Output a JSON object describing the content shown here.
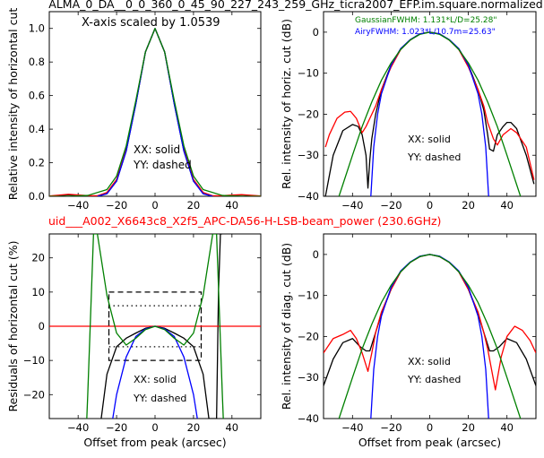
{
  "figure": {
    "title": "ALMA_0_DA__0_0_360_0_45_90_227_243_259_GHz_ticra2007_EFP.im.square.normalized",
    "subtitle": "uid___A002_X6643c8_X2f5_APC-DA56-H-LSB-beam_power (230.6GHz)",
    "subtitle_color": "#ff0000"
  },
  "chart_data": [
    {
      "id": "top-left",
      "type": "line",
      "xlabel": "",
      "ylabel": "Relative intensity of horizontal cut",
      "xlim": [
        -55,
        55
      ],
      "ylim": [
        0,
        1.1
      ],
      "xticks": [
        -40,
        -20,
        0,
        20,
        40
      ],
      "xtick_labels": [
        "−40",
        "−20",
        "0",
        "20",
        "40"
      ],
      "yticks": [
        0.0,
        0.2,
        0.4,
        0.6,
        0.8,
        1.0
      ],
      "ytick_labels": [
        "0.0",
        "0.2",
        "0.4",
        "0.6",
        "0.8",
        "1.0"
      ],
      "annotations": [
        "X-axis scaled by 1.0539",
        "XX: solid",
        "YY: dashed"
      ],
      "series_colors": [
        "#000000",
        "#ff0000",
        "#0000ff",
        "#008000"
      ],
      "series": [
        {
          "x": [
            -55,
            -45,
            -35,
            -30,
            -25,
            -20,
            -15,
            -10,
            -5,
            0,
            5,
            10,
            15,
            20,
            25,
            30,
            35,
            45,
            55
          ],
          "values": [
            0.0,
            0.008,
            0.0,
            0.001,
            0.02,
            0.09,
            0.27,
            0.55,
            0.86,
            1.0,
            0.86,
            0.55,
            0.27,
            0.09,
            0.02,
            0.001,
            0.0,
            0.008,
            0.0
          ]
        },
        {
          "x": [
            -55,
            -45,
            -35,
            -30,
            -25,
            -20,
            -15,
            -10,
            -5,
            0,
            5,
            10,
            15,
            20,
            25,
            30,
            35,
            45,
            55
          ],
          "values": [
            0.002,
            0.012,
            0.004,
            0.003,
            0.023,
            0.1,
            0.28,
            0.56,
            0.86,
            1.0,
            0.86,
            0.56,
            0.28,
            0.1,
            0.023,
            0.003,
            0.004,
            0.01,
            0.002
          ]
        },
        {
          "x": [
            -30,
            -25,
            -20,
            -15,
            -10,
            -5,
            0,
            5,
            10,
            15,
            20,
            25,
            30
          ],
          "values": [
            0.0,
            0.015,
            0.09,
            0.27,
            0.55,
            0.86,
            1.0,
            0.86,
            0.55,
            0.27,
            0.09,
            0.015,
            0.0
          ]
        },
        {
          "x": [
            -55,
            -45,
            -35,
            -25,
            -20,
            -15,
            -10,
            -5,
            0,
            5,
            10,
            15,
            20,
            25,
            35,
            45,
            55
          ],
          "values": [
            0.0,
            0.0,
            0.005,
            0.04,
            0.12,
            0.3,
            0.57,
            0.86,
            1.0,
            0.86,
            0.57,
            0.3,
            0.12,
            0.04,
            0.005,
            0.0,
            0.0
          ]
        }
      ]
    },
    {
      "id": "top-right",
      "type": "line",
      "xlabel": "",
      "ylabel": "Rel. intensity of horiz. cut (dB)",
      "xlim": [
        -55,
        55
      ],
      "ylim": [
        -40,
        5
      ],
      "xticks": [
        -40,
        -20,
        0,
        20,
        40
      ],
      "xtick_labels": [
        "−40",
        "−20",
        "0",
        "20",
        "40"
      ],
      "yticks": [
        0,
        -10,
        -20,
        -30,
        -40
      ],
      "ytick_labels": [
        "0",
        "−10",
        "−20",
        "−30",
        "−40"
      ],
      "legend": [
        {
          "label": "GaussianFWHM: 1.131*L/D=25.28\"",
          "color": "#008000"
        },
        {
          "label": "AiryFWHM: 1.023*L/10.7m=25.63\"",
          "color": "#0000ff"
        }
      ],
      "annotations": [
        "XX: solid",
        "YY: dashed"
      ],
      "series_colors": [
        "#000000",
        "#ff0000",
        "#0000ff",
        "#008000"
      ],
      "series": [
        {
          "x": [
            -54,
            -50,
            -45,
            -40,
            -37,
            -35,
            -33,
            -32,
            -31,
            -30,
            -28,
            -25,
            -20,
            -15,
            -10,
            -5,
            0,
            5,
            10,
            15,
            20,
            25,
            28,
            30,
            31,
            33,
            35,
            38,
            40,
            42,
            45,
            50,
            54
          ],
          "values": [
            -40,
            -30,
            -24,
            -22.5,
            -23,
            -25,
            -30,
            -38,
            -31,
            -26,
            -20,
            -14,
            -8,
            -4,
            -1.8,
            -0.4,
            0,
            -0.4,
            -1.8,
            -4,
            -8,
            -14,
            -19,
            -25,
            -28.5,
            -29,
            -25,
            -23,
            -22,
            -22,
            -23.5,
            -30,
            -37
          ]
        },
        {
          "x": [
            -54,
            -52,
            -48,
            -44,
            -41,
            -38,
            -35,
            -33,
            -31,
            -28,
            -25,
            -20,
            -15,
            -10,
            -5,
            0,
            5,
            10,
            15,
            20,
            25,
            28,
            30,
            33,
            35,
            38,
            42,
            45,
            50,
            54
          ],
          "values": [
            -28,
            -25,
            -21,
            -19.5,
            -19.3,
            -21,
            -24.5,
            -23,
            -21,
            -18,
            -14,
            -8.5,
            -4.2,
            -1.9,
            -0.4,
            0,
            -0.4,
            -1.9,
            -4.2,
            -8.5,
            -14,
            -18,
            -22,
            -26,
            -27.5,
            -25,
            -23.5,
            -24.5,
            -28,
            -36
          ]
        },
        {
          "x": [
            -30.5,
            -30,
            -29,
            -27,
            -25,
            -20,
            -15,
            -10,
            -5,
            0,
            5,
            10,
            15,
            20,
            25,
            27,
            29,
            30,
            30.5
          ],
          "values": [
            -40,
            -36,
            -28,
            -20,
            -15,
            -8,
            -4,
            -1.8,
            -0.4,
            0,
            -0.4,
            -1.8,
            -4,
            -8,
            -15,
            -20,
            -28,
            -36,
            -40
          ]
        },
        {
          "x": [
            -47,
            -40,
            -35,
            -30,
            -25,
            -20,
            -15,
            -10,
            -5,
            0,
            5,
            10,
            15,
            20,
            25,
            30,
            35,
            40,
            47
          ],
          "values": [
            -40,
            -30,
            -23,
            -17,
            -11.7,
            -7.5,
            -4.2,
            -1.9,
            -0.5,
            0,
            -0.5,
            -1.9,
            -4.2,
            -7.5,
            -11.7,
            -17,
            -23,
            -30,
            -40
          ]
        }
      ]
    },
    {
      "id": "bottom-left",
      "type": "line",
      "xlabel": "Offset from peak (arcsec)",
      "ylabel": "Residuals of horizontal cut (%)",
      "xlim": [
        -55,
        55
      ],
      "ylim": [
        -27,
        27
      ],
      "xticks": [
        -40,
        -20,
        0,
        20,
        40
      ],
      "xtick_labels": [
        "−40",
        "−20",
        "0",
        "20",
        "40"
      ],
      "yticks": [
        20,
        10,
        0,
        -10,
        -20
      ],
      "ytick_labels": [
        "20",
        "10",
        "0",
        "−10",
        "−20"
      ],
      "annotations": [
        "XX: solid",
        "YY: dashed"
      ],
      "series_colors": [
        "#000000",
        "#ff0000",
        "#0000ff",
        "#008000"
      ],
      "series": [
        {
          "x": [
            -28,
            -25,
            -20,
            -15,
            -10,
            -5,
            0,
            5,
            10,
            15,
            20,
            25,
            28,
            32,
            33,
            34,
            35
          ],
          "values": [
            -27,
            -14,
            -6,
            -3.5,
            -2,
            -0.6,
            0,
            -0.6,
            -2,
            -3.5,
            -6,
            -14,
            -27,
            -27,
            10,
            27,
            27
          ]
        },
        {
          "x": [
            -55,
            55
          ],
          "values": [
            0,
            0
          ]
        },
        {
          "x": [
            -22,
            -20,
            -15,
            -10,
            -5,
            0,
            5,
            10,
            15,
            20,
            22
          ],
          "values": [
            -27,
            -20,
            -9,
            -3,
            -0.8,
            0,
            -0.8,
            -3,
            -9,
            -20,
            -27
          ]
        },
        {
          "x": [
            -35.5,
            -35,
            -32,
            -30,
            -25,
            -20,
            -15,
            -10,
            -5,
            0,
            5,
            10,
            15,
            20,
            25,
            30,
            32,
            35,
            35.5
          ],
          "values": [
            -27,
            -20,
            27,
            27,
            9,
            -2,
            -5.5,
            -3.5,
            -1,
            0,
            -1,
            -3.5,
            -5.5,
            -2,
            9,
            27,
            27,
            -20,
            -27
          ]
        }
      ],
      "boxes": [
        {
          "x": [
            -24,
            24
          ],
          "y": [
            -10,
            10
          ],
          "style": "dashed"
        },
        {
          "x": [
            -24,
            24
          ],
          "y": [
            -6,
            6
          ],
          "style": "dotted"
        }
      ]
    },
    {
      "id": "bottom-right",
      "type": "line",
      "xlabel": "Offset from peak (arcsec)",
      "ylabel": "Rel. intensity of diag. cut (dB)",
      "xlim": [
        -55,
        55
      ],
      "ylim": [
        -40,
        5
      ],
      "xticks": [
        -40,
        -20,
        0,
        20,
        40
      ],
      "xtick_labels": [
        "−40",
        "−20",
        "0",
        "20",
        "40"
      ],
      "yticks": [
        0,
        -10,
        -20,
        -30,
        -40
      ],
      "ytick_labels": [
        "0",
        "−10",
        "−20",
        "−30",
        "−40"
      ],
      "annotations": [
        "XX: solid",
        "YY: dashed"
      ],
      "series_colors": [
        "#000000",
        "#ff0000",
        "#0000ff",
        "#008000"
      ],
      "series": [
        {
          "x": [
            -55,
            -50,
            -45,
            -40,
            -36,
            -33,
            -31,
            -29,
            -25,
            -20,
            -15,
            -10,
            -5,
            0,
            5,
            10,
            15,
            20,
            25,
            29,
            31,
            33,
            36,
            40,
            45,
            50,
            55
          ],
          "values": [
            -32,
            -25.5,
            -21.5,
            -20.5,
            -22.5,
            -23.5,
            -23.5,
            -20.5,
            -14.5,
            -8.5,
            -4.2,
            -1.9,
            -0.5,
            0,
            -0.5,
            -1.9,
            -4.2,
            -8.5,
            -14.5,
            -20.5,
            -23.5,
            -23.5,
            -22.5,
            -20.5,
            -21.5,
            -25.5,
            -32
          ]
        },
        {
          "x": [
            -55,
            -50,
            -45,
            -41,
            -38,
            -35,
            -32,
            -30,
            -28,
            -25,
            -20,
            -15,
            -10,
            -5,
            0,
            5,
            10,
            15,
            20,
            25,
            28,
            30,
            32,
            34,
            37,
            40,
            44,
            48,
            52,
            55
          ],
          "values": [
            -24,
            -20.5,
            -19.5,
            -18.5,
            -20.5,
            -24,
            -28.5,
            -24,
            -19,
            -14,
            -8.5,
            -4.2,
            -1.9,
            -0.5,
            0,
            -0.5,
            -1.9,
            -4.2,
            -8.5,
            -14,
            -19,
            -23,
            -28,
            -33,
            -25,
            -20,
            -17.5,
            -18.5,
            -21,
            -24
          ]
        },
        {
          "x": [
            -30.5,
            -30,
            -29,
            -27,
            -25,
            -20,
            -15,
            -10,
            -5,
            0,
            5,
            10,
            15,
            20,
            25,
            27,
            29,
            30,
            30.5
          ],
          "values": [
            -40,
            -36,
            -28,
            -20,
            -15,
            -8,
            -4,
            -1.8,
            -0.4,
            0,
            -0.4,
            -1.8,
            -4,
            -8,
            -15,
            -20,
            -28,
            -36,
            -40
          ]
        },
        {
          "x": [
            -47,
            -40,
            -35,
            -30,
            -25,
            -20,
            -15,
            -10,
            -5,
            0,
            5,
            10,
            15,
            20,
            25,
            30,
            35,
            40,
            47
          ],
          "values": [
            -40,
            -30,
            -23,
            -17,
            -11.7,
            -7.5,
            -4.2,
            -1.9,
            -0.5,
            0,
            -0.5,
            -1.9,
            -4.2,
            -7.5,
            -11.7,
            -17,
            -23,
            -30,
            -40
          ]
        }
      ]
    }
  ]
}
